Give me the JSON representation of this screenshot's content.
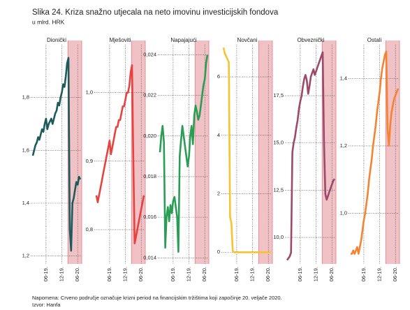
{
  "title": "Slika 24. Kriza snažno utjecala na neto imovinu investicijskih fondova",
  "subtitle": "u mlrd. HRK",
  "note": "Napomena: Crveno područje označuje krizni period na financijskim tržištima koji započinje 20. veljače 2020.",
  "source": "Izvor: Hanfa",
  "chart_data": [
    {
      "type": "line",
      "title": "Dionički",
      "color": "#1d5a5c",
      "categories": [
        null,
        null,
        null,
        null,
        null,
        null,
        null,
        null,
        null,
        null,
        "06-19.",
        null,
        null,
        null,
        null,
        null,
        null,
        null,
        null,
        null,
        null,
        null,
        "12-19.",
        null,
        null,
        null,
        null,
        null,
        null,
        null,
        null,
        null,
        null,
        null,
        "06-20.",
        null,
        null
      ],
      "values": [
        1.58,
        1.6,
        1.62,
        1.63,
        1.65,
        1.64,
        1.66,
        1.68,
        1.67,
        1.7,
        1.72,
        1.68,
        1.7,
        1.71,
        1.72,
        1.7,
        1.72,
        1.74,
        1.75,
        1.78,
        1.77,
        1.8,
        1.82,
        1.85,
        1.84,
        1.88,
        1.93,
        1.95,
        1.3,
        1.22,
        1.4,
        1.42,
        1.45,
        1.48,
        1.47,
        1.5,
        1.49
      ],
      "ylim": [
        1.17,
        2.0
      ],
      "yticks": [
        {
          "value": 1.2,
          "label": "1,2"
        },
        {
          "value": 1.4,
          "label": "1,4"
        },
        {
          "value": 1.6,
          "label": "1,6"
        },
        {
          "value": 1.8,
          "label": "1,8"
        }
      ],
      "grid": true
    },
    {
      "type": "line",
      "title": "Mješoviti",
      "color": "#e8423f",
      "categories": [
        null,
        null,
        null,
        null,
        null,
        null,
        null,
        null,
        null,
        null,
        "06-19.",
        null,
        null,
        null,
        null,
        null,
        null,
        null,
        null,
        null,
        null,
        null,
        "12-19.",
        null,
        null,
        null,
        null,
        null,
        null,
        null,
        null,
        null,
        null,
        null,
        "06-20.",
        null,
        null
      ],
      "values": [
        0.85,
        0.84,
        0.85,
        0.86,
        0.87,
        0.88,
        0.89,
        0.9,
        0.91,
        0.92,
        0.93,
        0.91,
        0.92,
        0.93,
        0.94,
        0.95,
        0.95,
        0.96,
        0.96,
        0.97,
        0.98,
        0.98,
        0.99,
        1.0,
        1.0,
        1.01,
        1.03,
        1.04,
        0.9,
        0.78,
        0.79,
        0.8,
        0.81,
        0.82,
        0.83,
        0.84,
        0.85
      ],
      "ylim": [
        0.75,
        1.07
      ],
      "yticks": [
        {
          "value": 0.8,
          "label": "0,8"
        },
        {
          "value": 0.9,
          "label": "0,9"
        },
        {
          "value": 1.0,
          "label": "1,0"
        }
      ],
      "grid": true
    },
    {
      "type": "line",
      "title": "Napajajući",
      "color": "#2a9d55",
      "categories": [
        null,
        null,
        null,
        null,
        null,
        null,
        null,
        null,
        null,
        null,
        "06-19.",
        null,
        null,
        null,
        null,
        null,
        null,
        null,
        null,
        null,
        null,
        null,
        "12-19.",
        null,
        null,
        null,
        null,
        null,
        null,
        null,
        null,
        null,
        null,
        null,
        "06-20.",
        null,
        null
      ],
      "values": [
        0.0192,
        0.02,
        0.0205,
        0.0197,
        0.0145,
        0.016,
        0.0165,
        0.0158,
        0.0166,
        0.0162,
        0.0168,
        0.017,
        0.0165,
        0.016,
        0.0143,
        0.019,
        0.0198,
        0.0205,
        0.02,
        0.0195,
        0.019,
        0.0185,
        0.019,
        0.02,
        0.0205,
        0.0196,
        0.021,
        0.0215,
        0.0212,
        0.0208,
        0.021,
        0.0215,
        0.022,
        0.0225,
        0.0228,
        0.0236,
        0.024
      ],
      "ylim": [
        0.0137,
        0.0245
      ],
      "yticks": [
        {
          "value": 0.014,
          "label": "0,014"
        },
        {
          "value": 0.016,
          "label": "0,016"
        },
        {
          "value": 0.018,
          "label": "0,018"
        },
        {
          "value": 0.02,
          "label": "0,020"
        },
        {
          "value": 0.022,
          "label": "0,022"
        },
        {
          "value": 0.024,
          "label": "0,024"
        }
      ],
      "grid": true
    },
    {
      "type": "line",
      "title": "Novčani",
      "color": "#f7c331",
      "categories": [
        null,
        null,
        null,
        null,
        null,
        null,
        null,
        null,
        null,
        null,
        "06-19.",
        null,
        null,
        null,
        null,
        null,
        null,
        null,
        null,
        null,
        null,
        null,
        "12-19.",
        null,
        null,
        null,
        null,
        null,
        null,
        null,
        null,
        null,
        null,
        null,
        "06-20.",
        null,
        null
      ],
      "values": [
        7.0,
        6.8,
        6.7,
        6.6,
        6.5,
        1.2,
        1.0,
        0.05,
        0,
        0,
        0,
        0,
        0,
        0,
        0,
        0,
        0,
        0,
        0,
        0,
        0,
        0,
        0,
        0,
        0,
        0,
        0,
        0,
        0,
        0,
        0,
        0,
        0,
        0,
        0,
        0,
        0
      ],
      "ylim": [
        -0.4,
        7.1
      ],
      "yticks": [
        0,
        2,
        4,
        6
      ],
      "grid": true
    },
    {
      "type": "line",
      "title": "Obveznički",
      "color": "#9b4a6a",
      "categories": [
        null,
        null,
        null,
        null,
        null,
        null,
        null,
        null,
        null,
        null,
        "06-19.",
        null,
        null,
        null,
        null,
        null,
        null,
        null,
        null,
        null,
        null,
        null,
        "12-19.",
        null,
        null,
        null,
        null,
        null,
        null,
        null,
        null,
        null,
        null,
        null,
        "06-20.",
        null,
        null
      ],
      "values": [
        8.8,
        8.9,
        9.0,
        9.2,
        14.5,
        15.0,
        15.3,
        15.8,
        16.2,
        16.8,
        17.2,
        17.5,
        18.0,
        18.4,
        18.6,
        18.3,
        17.6,
        18.0,
        18.5,
        18.7,
        18.9,
        18.6,
        18.8,
        19.0,
        19.2,
        19.4,
        19.6,
        19.8,
        15.0,
        12.3,
        12.0,
        12.2,
        12.4,
        12.6,
        12.8,
        13.0,
        13.1
      ],
      "ylim": [
        8.6,
        20.2
      ],
      "yticks": [
        {
          "value": 10,
          "label": "10,0"
        },
        {
          "value": 12.5,
          "label": "12,5"
        },
        {
          "value": 15,
          "label": "15,0"
        },
        {
          "value": 17.5,
          "label": "17,5"
        }
      ],
      "grid": true
    },
    {
      "type": "line",
      "title": "Ostali",
      "color": "#f58432",
      "categories": [
        null,
        null,
        null,
        null,
        null,
        null,
        null,
        null,
        null,
        null,
        "06-19.",
        null,
        null,
        null,
        null,
        null,
        null,
        null,
        null,
        null,
        null,
        null,
        "12-19.",
        null,
        null,
        null,
        null,
        null,
        null,
        null,
        null,
        null,
        null,
        null,
        "06-20.",
        null,
        null
      ],
      "values": [
        0.88,
        0.88,
        0.89,
        0.88,
        0.89,
        0.9,
        0.88,
        0.9,
        0.92,
        0.95,
        0.98,
        1.0,
        1.03,
        1.06,
        1.1,
        1.13,
        1.16,
        1.2,
        1.23,
        1.26,
        1.3,
        1.33,
        1.36,
        1.4,
        1.43,
        1.45,
        1.47,
        1.48,
        1.25,
        1.2,
        1.26,
        1.3,
        1.32,
        1.34,
        1.35,
        1.36,
        1.37
      ],
      "ylim": [
        0.85,
        1.5
      ],
      "yticks": [
        {
          "value": 1.0,
          "label": "1,0"
        },
        {
          "value": 1.2,
          "label": "1,2"
        },
        {
          "value": 1.4,
          "label": "1,4"
        }
      ],
      "grid": true
    }
  ]
}
